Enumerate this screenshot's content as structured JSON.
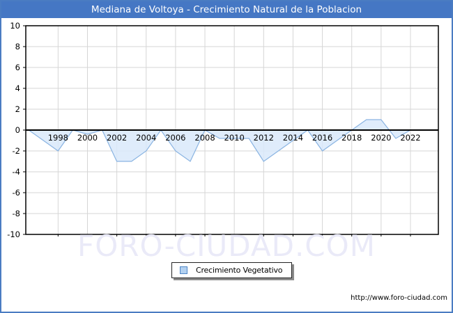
{
  "window": {
    "title": "Mediana de Voltoya - Crecimiento Natural de la Poblacion"
  },
  "watermark": "FORO-CIUDAD.COM",
  "legend": {
    "label": "Crecimiento Vegetativo",
    "swatch_color": "#b3d1f0",
    "swatch_border": "#4f86c6"
  },
  "footer": {
    "url": "http://www.foro-ciudad.com"
  },
  "colors": {
    "title_bar": "#4577c4",
    "page_border": "#4a7cc2",
    "grid": "#d6d6d6",
    "axis": "#000000",
    "line": "#8ab4e2",
    "fill": "#d9e9fa",
    "watermark": "#eaeaf8"
  },
  "chart_data": {
    "type": "area",
    "title": "Mediana de Voltoya - Crecimiento Natural de la Poblacion",
    "series_name": "Crecimiento Vegetativo",
    "x": [
      1996,
      1997,
      1998,
      1999,
      2000,
      2001,
      2002,
      2003,
      2004,
      2005,
      2006,
      2007,
      2008,
      2009,
      2010,
      2011,
      2012,
      2013,
      2014,
      2015,
      2016,
      2017,
      2018,
      2019,
      2020,
      2021,
      2022,
      2023
    ],
    "values": [
      0,
      -1,
      -2,
      0,
      -0.4,
      0,
      -3,
      -3,
      -2,
      0,
      -2,
      -3,
      0,
      -0.8,
      -0.8,
      -0.8,
      -3,
      -2,
      -1,
      0,
      -2,
      -1,
      0,
      1,
      1,
      -0.8,
      0,
      0
    ],
    "ylim": [
      -10,
      10
    ],
    "ytick_step": 2,
    "xticks": [
      1998,
      2000,
      2002,
      2004,
      2006,
      2008,
      2010,
      2012,
      2014,
      2016,
      2018,
      2020,
      2022
    ],
    "xlim": [
      1995.8,
      2023.9
    ],
    "grid": true,
    "baseline": 0,
    "legend_position": "bottom-center",
    "line_color": "#8ab4e2",
    "fill_color": "#d9e9fa"
  }
}
